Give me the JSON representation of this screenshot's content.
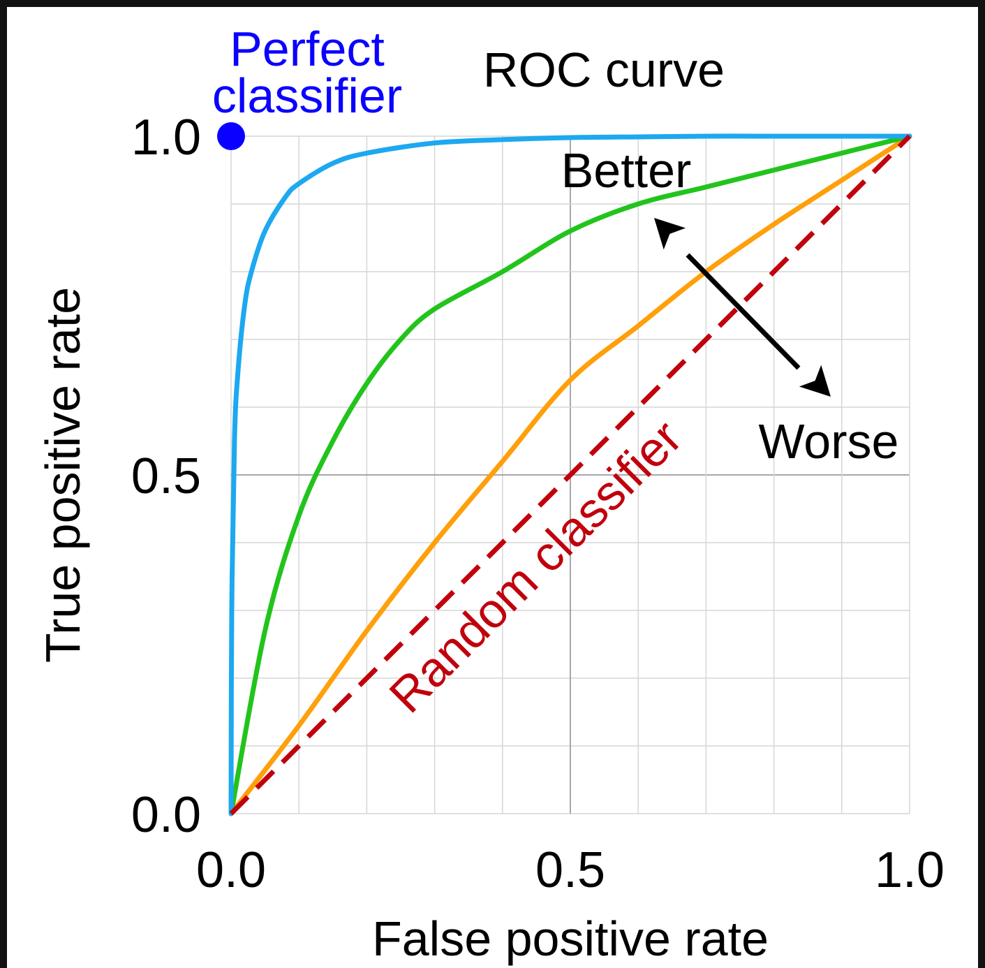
{
  "chart_data": {
    "type": "line",
    "title": "ROC curve",
    "xlabel": "False positive rate",
    "ylabel": "True positive rate",
    "xlim": [
      0,
      1
    ],
    "ylim": [
      0,
      1
    ],
    "grid": true,
    "x_ticks": [
      {
        "value": 0,
        "label": "0.0"
      },
      {
        "value": 0.5,
        "label": "0.5"
      },
      {
        "value": 1,
        "label": "1.0"
      }
    ],
    "y_ticks": [
      {
        "value": 0,
        "label": "0.0"
      },
      {
        "value": 0.5,
        "label": "0.5"
      },
      {
        "value": 1,
        "label": "1.0"
      }
    ],
    "series": [
      {
        "color": "#1da8f0",
        "x": [
          0,
          0.001,
          0.005,
          0.01,
          0.02,
          0.03,
          0.05,
          0.08,
          0.1,
          0.15,
          0.2,
          0.3,
          0.4,
          0.5,
          0.6,
          0.7,
          0.8,
          0.9,
          1.0
        ],
        "y": [
          0,
          0.3,
          0.55,
          0.65,
          0.75,
          0.8,
          0.86,
          0.91,
          0.93,
          0.96,
          0.975,
          0.99,
          0.995,
          0.998,
          0.999,
          1.0,
          1.0,
          1.0,
          1.0
        ]
      },
      {
        "color": "#22c41c",
        "x": [
          0,
          0.05,
          0.1,
          0.15,
          0.2,
          0.25,
          0.3,
          0.4,
          0.5,
          0.6,
          0.7,
          0.8,
          0.9,
          1.0
        ],
        "y": [
          0,
          0.27,
          0.44,
          0.55,
          0.635,
          0.7,
          0.745,
          0.8,
          0.86,
          0.9,
          0.925,
          0.95,
          0.975,
          1.0
        ]
      },
      {
        "color": "#ff9f0a",
        "x": [
          0,
          0.1,
          0.2,
          0.3,
          0.4,
          0.5,
          0.6,
          0.7,
          0.8,
          0.9,
          1.0
        ],
        "y": [
          0,
          0.13,
          0.27,
          0.4,
          0.52,
          0.64,
          0.72,
          0.8,
          0.87,
          0.935,
          1.0
        ]
      },
      {
        "color": "#c0000c",
        "dashed": true,
        "x": [
          0,
          1
        ],
        "y": [
          0,
          1
        ]
      }
    ],
    "points": [
      {
        "x": 0,
        "y": 1,
        "color": "#0a00ff"
      }
    ],
    "annotations": {
      "perfect_line1": "Perfect",
      "perfect_line2": "classifier",
      "better": "Better",
      "worse": "Worse",
      "random": "Random classifier"
    }
  }
}
